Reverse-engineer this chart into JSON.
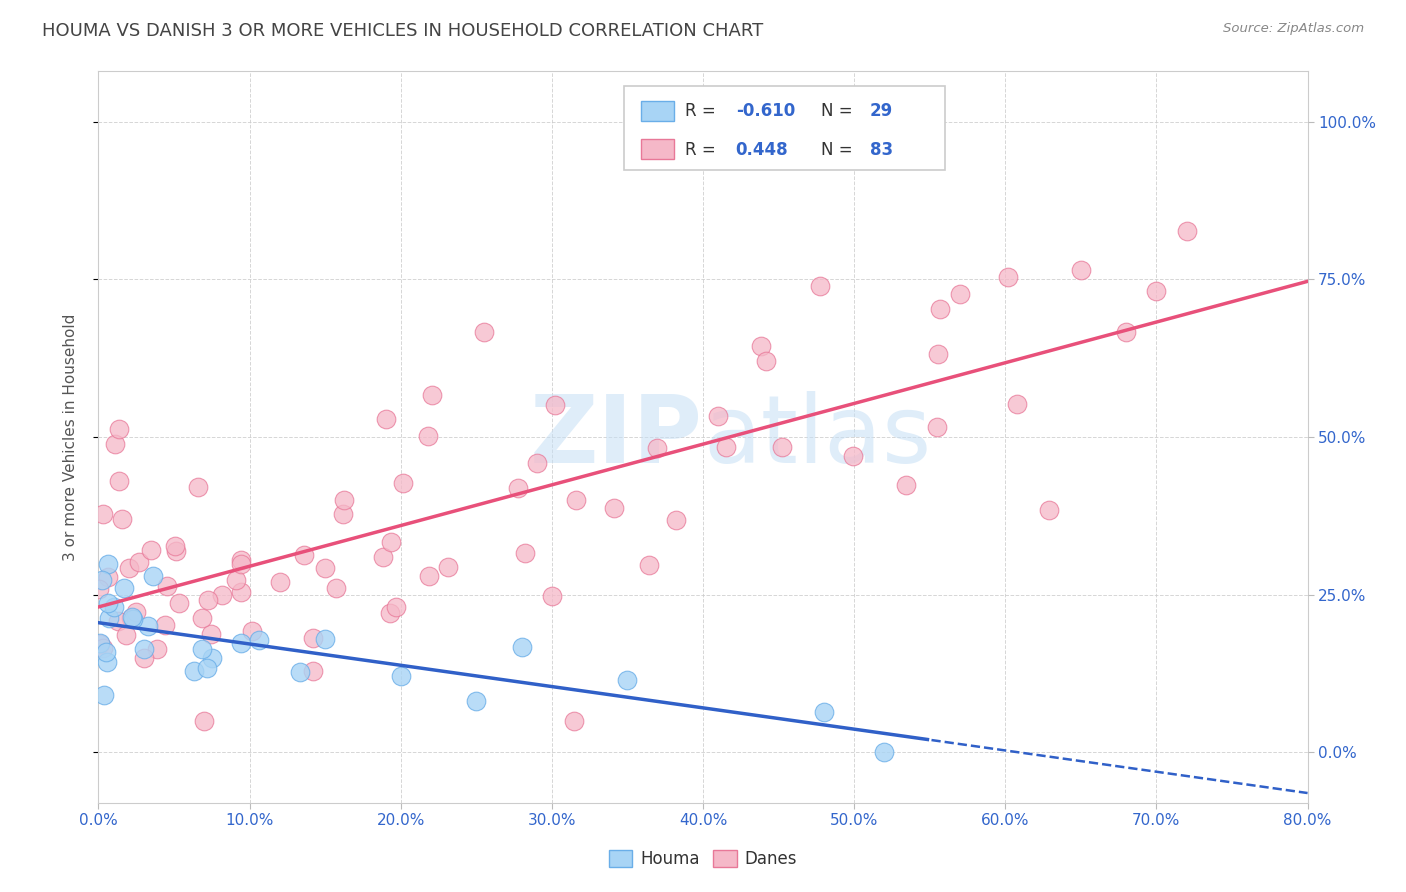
{
  "title": "HOUMA VS DANISH 3 OR MORE VEHICLES IN HOUSEHOLD CORRELATION CHART",
  "source_text": "Source: ZipAtlas.com",
  "ylabel": "3 or more Vehicles in Household",
  "xlim": [
    0.0,
    80.0
  ],
  "ylim": [
    -8.0,
    108.0
  ],
  "xticks": [
    0.0,
    10.0,
    20.0,
    30.0,
    40.0,
    50.0,
    60.0,
    70.0,
    80.0
  ],
  "yticks": [
    0.0,
    25.0,
    50.0,
    75.0,
    100.0
  ],
  "houma_color": "#a8d4f5",
  "houma_edge_color": "#6aaee8",
  "danes_color": "#f5b8c8",
  "danes_edge_color": "#e87898",
  "houma_line_color": "#3060c8",
  "danes_line_color": "#e8507a",
  "background_color": "#ffffff",
  "grid_color": "#cccccc",
  "title_color": "#444444",
  "watermark": "ZIPAtlas",
  "watermark_color": "#c5dff5",
  "houma_R": -0.61,
  "houma_N": 29,
  "danes_R": 0.448,
  "danes_N": 83,
  "legend_box_color": "#e8e8f8",
  "legend_border_color": "#b0b0d0"
}
